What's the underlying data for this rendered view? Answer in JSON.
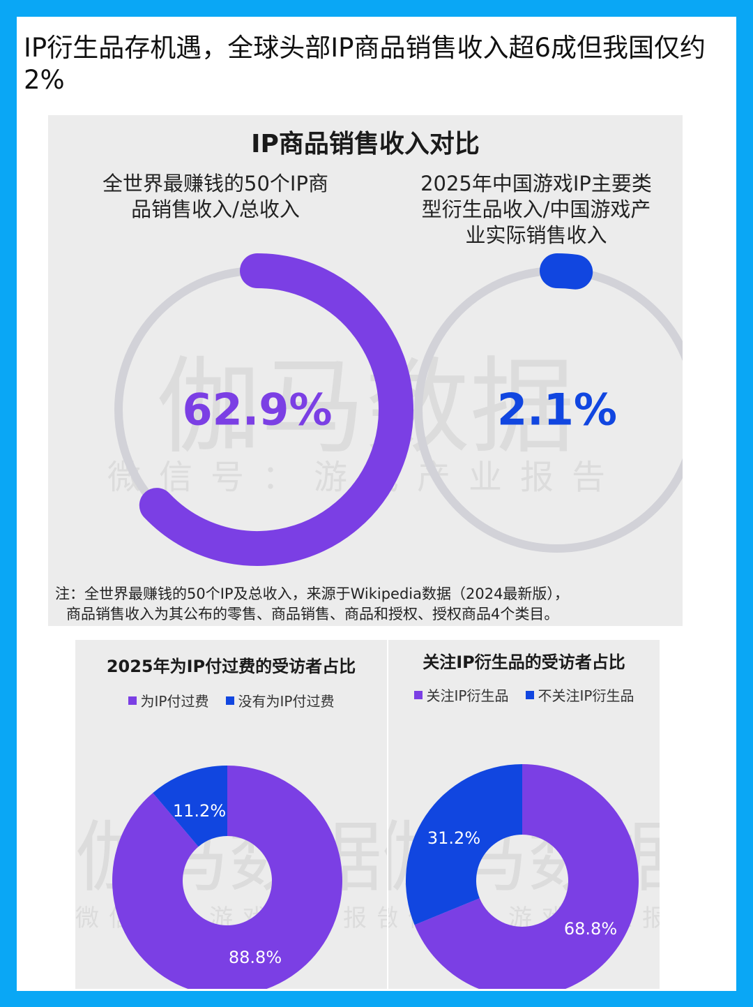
{
  "headline": "IP衍生品存机遇，全球头部IP商品销售收入超6成但我国仅约2%",
  "watermark": {
    "main": "伽马数据",
    "sub": "微信号：游戏产业报告",
    "bottom_main": "伽马数据伽马数据",
    "bottom_sub": "微信号：游戏产业报告 微信号：游戏产业"
  },
  "colors": {
    "purple": "#7b3fe4",
    "blue": "#1146e0",
    "track": "#d2d2d8",
    "outer_bg": "#0aa7f5"
  },
  "top_panel": {
    "title": "IP商品销售收入对比",
    "left_label": [
      "全世界最赚钱的50个IP商",
      "品销售收入/总收入"
    ],
    "right_label": [
      "2025年中国游戏IP主要类",
      "型衍生品收入/中国游戏产",
      "业实际销售收入"
    ],
    "note": [
      "注：全世界最赚钱的50个IP及总收入，来源于Wikipedia数据（2024最新版），",
      "商品销售收入为其公布的零售、商品销售、商品和授权、授权商品4个类目。"
    ]
  },
  "bottom_left": {
    "title": "2025年为IP付过费的受访者占比",
    "legend": [
      "为IP付过费",
      "没有为IP付过费"
    ]
  },
  "bottom_right": {
    "title": "关注IP衍生品的受访者占比",
    "legend": [
      "关注IP衍生品",
      "不关注IP衍生品"
    ]
  },
  "chart_data": [
    {
      "type": "pie",
      "variant": "progress-ring",
      "title": "全世界最赚钱的50个IP商品销售收入/总收入",
      "values": [
        62.9
      ],
      "unit": "%",
      "label": "62.9%",
      "color": "#7b3fe4"
    },
    {
      "type": "pie",
      "variant": "progress-ring",
      "title": "2025年中国游戏IP主要类型衍生品收入/中国游戏产业实际销售收入",
      "values": [
        2.1
      ],
      "unit": "%",
      "label": "2.1%",
      "color": "#1146e0"
    },
    {
      "type": "pie",
      "variant": "donut",
      "title": "2025年为IP付过费的受访者占比",
      "categories": [
        "为IP付过费",
        "没有为IP付过费"
      ],
      "values": [
        88.8,
        11.2
      ],
      "labels": [
        "88.8%",
        "11.2%"
      ],
      "colors": [
        "#7b3fe4",
        "#1146e0"
      ],
      "legend": "top"
    },
    {
      "type": "pie",
      "variant": "donut",
      "title": "关注IP衍生品的受访者占比",
      "categories": [
        "关注IP衍生品",
        "不关注IP衍生品"
      ],
      "values": [
        68.8,
        31.2
      ],
      "labels": [
        "68.8%",
        "31.2%"
      ],
      "colors": [
        "#7b3fe4",
        "#1146e0"
      ],
      "legend": "top"
    }
  ]
}
